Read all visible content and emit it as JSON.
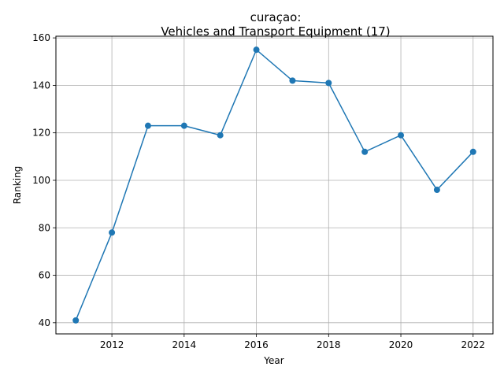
{
  "chart_data": {
    "type": "line",
    "title_line1": "curaçao:",
    "title_line2": "Vehicles and Transport Equipment (17)",
    "xlabel": "Year",
    "ylabel": "Ranking",
    "x": [
      2011,
      2012,
      2013,
      2014,
      2015,
      2016,
      2017,
      2018,
      2019,
      2020,
      2021,
      2022
    ],
    "y": [
      41,
      78,
      123,
      123,
      119,
      155,
      142,
      141,
      112,
      119,
      96,
      112
    ],
    "xlim": [
      2010.45,
      2022.55
    ],
    "ylim": [
      35.3,
      160.7
    ],
    "x_ticks": [
      2012,
      2014,
      2016,
      2018,
      2020,
      2022
    ],
    "y_ticks": [
      40,
      60,
      80,
      100,
      120,
      140,
      160
    ],
    "grid": true,
    "line_color": "#1f77b4",
    "marker": "circle"
  }
}
